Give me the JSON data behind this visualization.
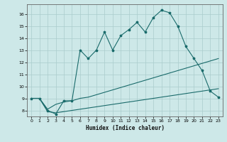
{
  "xlabel": "Humidex (Indice chaleur)",
  "bg_color": "#cde8e8",
  "grid_color": "#aacccc",
  "line_color": "#1a6b6b",
  "xlim": [
    -0.5,
    23.5
  ],
  "ylim": [
    7.5,
    16.8
  ],
  "xticks": [
    0,
    1,
    2,
    3,
    4,
    5,
    6,
    7,
    8,
    9,
    10,
    11,
    12,
    13,
    14,
    15,
    16,
    17,
    18,
    19,
    20,
    21,
    22,
    23
  ],
  "yticks": [
    8,
    9,
    10,
    11,
    12,
    13,
    14,
    15,
    16
  ],
  "line1_x": [
    0,
    1,
    2,
    3,
    4,
    5,
    6,
    7,
    8,
    9,
    10,
    11,
    12,
    13,
    14,
    15,
    16,
    17,
    18,
    19,
    20,
    21,
    22,
    23
  ],
  "line1_y": [
    9.0,
    9.0,
    8.0,
    7.7,
    8.8,
    8.8,
    13.0,
    12.3,
    13.0,
    14.5,
    13.0,
    14.2,
    14.7,
    15.3,
    14.5,
    15.7,
    16.3,
    16.1,
    15.0,
    13.3,
    12.3,
    11.3,
    9.6,
    9.1
  ],
  "line2_x": [
    0,
    1,
    2,
    3,
    4,
    5,
    6,
    7,
    8,
    9,
    10,
    11,
    12,
    13,
    14,
    15,
    16,
    17,
    18,
    19,
    20,
    21,
    22,
    23
  ],
  "line2_y": [
    9.0,
    9.0,
    8.1,
    8.5,
    8.7,
    8.8,
    9.0,
    9.1,
    9.3,
    9.5,
    9.7,
    9.9,
    10.1,
    10.3,
    10.5,
    10.7,
    10.9,
    11.1,
    11.3,
    11.5,
    11.7,
    11.9,
    12.1,
    12.3
  ],
  "line3_x": [
    0,
    1,
    2,
    3,
    4,
    5,
    6,
    7,
    8,
    9,
    10,
    11,
    12,
    13,
    14,
    15,
    16,
    17,
    18,
    19,
    20,
    21,
    22,
    23
  ],
  "line3_y": [
    9.0,
    9.0,
    7.9,
    7.8,
    7.9,
    8.0,
    8.1,
    8.2,
    8.3,
    8.4,
    8.5,
    8.6,
    8.7,
    8.8,
    8.9,
    9.0,
    9.1,
    9.2,
    9.3,
    9.4,
    9.5,
    9.6,
    9.7,
    9.8
  ]
}
